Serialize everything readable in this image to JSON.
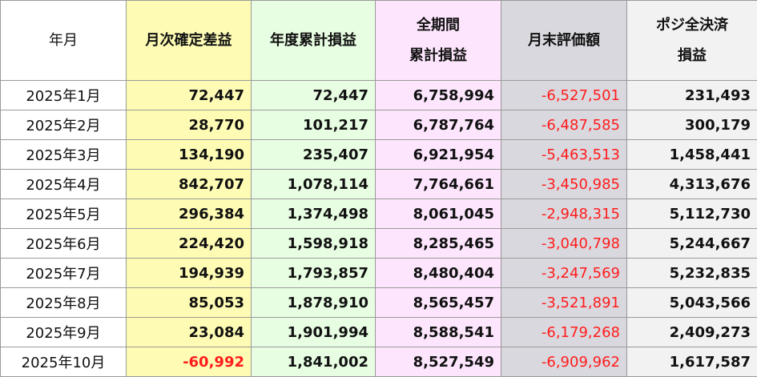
{
  "table": {
    "header": [
      "年月",
      "月次確定差益",
      "年度累計損益",
      "全期間\n累計損益",
      "月末評価額",
      "ポジ全決済\n損益"
    ],
    "rows": [
      [
        "2025年1月",
        "72,447",
        "72,447",
        "6,758,994",
        "-6,527,501",
        "231,493"
      ],
      [
        "2025年2月",
        "28,770",
        "101,217",
        "6,787,764",
        "-6,487,585",
        "300,179"
      ],
      [
        "2025年3月",
        "134,190",
        "235,407",
        "6,921,954",
        "-5,463,513",
        "1,458,441"
      ],
      [
        "2025年4月",
        "842,707",
        "1,078,114",
        "7,764,661",
        "-3,450,985",
        "4,313,676"
      ],
      [
        "2025年5月",
        "296,384",
        "1,374,498",
        "8,061,045",
        "-2,948,315",
        "5,112,730"
      ],
      [
        "2025年6月",
        "224,420",
        "1,598,918",
        "8,285,465",
        "-3,040,798",
        "5,244,667"
      ],
      [
        "2025年7月",
        "194,939",
        "1,793,857",
        "8,480,404",
        "-3,247,569",
        "5,232,835"
      ],
      [
        "2025年8月",
        "85,053",
        "1,878,910",
        "8,565,457",
        "-3,521,891",
        "5,043,566"
      ],
      [
        "2025年9月",
        "23,084",
        "1,901,994",
        "8,588,541",
        "-6,179,268",
        "2,409,273"
      ],
      [
        "2025年10月",
        "-60,992",
        "1,841,002",
        "8,527,549",
        "-6,909,962",
        "1,617,587"
      ]
    ]
  }
}
